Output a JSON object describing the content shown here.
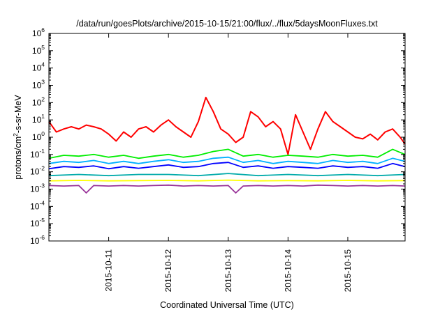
{
  "chart_data": {
    "type": "line",
    "title": "/data/run/goesPlots/archive/2015-10-15/21:00/flux/../flux/5daysMoonFluxes.txt",
    "xlabel": "Coordinated Universal Time (UTC)",
    "ylabel": "protons/cm²-s-sr-MeV",
    "ylabel_parts": {
      "pre": "protons/cm",
      "sup": "2",
      "post": "-s-sr-MeV"
    },
    "y_scale": "log",
    "ylim": [
      1e-06,
      1000000.0
    ],
    "y_ticks": [
      {
        "value": 1e-06,
        "base": "10",
        "exp": "-6"
      },
      {
        "value": 1e-05,
        "base": "10",
        "exp": "-5"
      },
      {
        "value": 0.0001,
        "base": "10",
        "exp": "-4"
      },
      {
        "value": 0.001,
        "base": "10",
        "exp": "-3"
      },
      {
        "value": 0.01,
        "base": "10",
        "exp": "-2"
      },
      {
        "value": 0.1,
        "base": "10",
        "exp": "-1"
      },
      {
        "value": 1,
        "base": "10",
        "exp": "0"
      },
      {
        "value": 10,
        "base": "10",
        "exp": "1"
      },
      {
        "value": 100,
        "base": "10",
        "exp": "2"
      },
      {
        "value": 1000,
        "base": "10",
        "exp": "3"
      },
      {
        "value": 10000,
        "base": "10",
        "exp": "4"
      },
      {
        "value": 100000,
        "base": "10",
        "exp": "5"
      },
      {
        "value": 1000000,
        "base": "10",
        "exp": "6"
      }
    ],
    "xlim": [
      "2015-10-10T00:00",
      "2015-10-15T23:00"
    ],
    "x_ticks": [
      "2015-10-11",
      "2015-10-12",
      "2015-10-13",
      "2015-10-14",
      "2015-10-15"
    ],
    "grid": false,
    "series": [
      {
        "color": "#ff0000",
        "x": [
          "2015-10-10T00:00",
          "2015-10-10T03:00",
          "2015-10-10T06:00",
          "2015-10-10T09:00",
          "2015-10-10T12:00",
          "2015-10-10T15:00",
          "2015-10-10T18:00",
          "2015-10-10T21:00",
          "2015-10-11T00:00",
          "2015-10-11T03:00",
          "2015-10-11T06:00",
          "2015-10-11T09:00",
          "2015-10-11T12:00",
          "2015-10-11T15:00",
          "2015-10-11T18:00",
          "2015-10-11T21:00",
          "2015-10-12T00:00",
          "2015-10-12T03:00",
          "2015-10-12T06:00",
          "2015-10-12T09:00",
          "2015-10-12T12:00",
          "2015-10-12T15:00",
          "2015-10-12T18:00",
          "2015-10-12T21:00",
          "2015-10-13T00:00",
          "2015-10-13T03:00",
          "2015-10-13T06:00",
          "2015-10-13T09:00",
          "2015-10-13T12:00",
          "2015-10-13T15:00",
          "2015-10-13T18:00",
          "2015-10-13T21:00",
          "2015-10-14T00:00",
          "2015-10-14T03:00",
          "2015-10-14T06:00",
          "2015-10-14T09:00",
          "2015-10-14T12:00",
          "2015-10-14T15:00",
          "2015-10-14T18:00",
          "2015-10-14T21:00",
          "2015-10-15T00:00",
          "2015-10-15T03:00",
          "2015-10-15T06:00",
          "2015-10-15T09:00",
          "2015-10-15T12:00",
          "2015-10-15T15:00",
          "2015-10-15T18:00",
          "2015-10-15T21:00",
          "2015-10-15T23:00"
        ],
        "values": [
          8,
          2,
          3,
          4,
          3,
          5,
          4,
          3,
          1.5,
          0.6,
          2,
          1,
          3,
          4,
          2,
          5,
          10,
          4,
          2,
          1,
          8,
          200,
          30,
          3,
          1.5,
          0.5,
          1,
          30,
          15,
          4,
          8,
          3,
          0.1,
          20,
          2,
          0.2,
          3,
          30,
          8,
          4,
          2,
          1,
          0.8,
          1.5,
          0.7,
          2,
          3,
          1,
          0.4
        ]
      },
      {
        "color": "#00ee00",
        "x": [
          "2015-10-10T00:00",
          "2015-10-10T06:00",
          "2015-10-10T12:00",
          "2015-10-10T18:00",
          "2015-10-11T00:00",
          "2015-10-11T06:00",
          "2015-10-11T12:00",
          "2015-10-11T18:00",
          "2015-10-12T00:00",
          "2015-10-12T06:00",
          "2015-10-12T12:00",
          "2015-10-12T18:00",
          "2015-10-13T00:00",
          "2015-10-13T06:00",
          "2015-10-13T12:00",
          "2015-10-13T18:00",
          "2015-10-14T00:00",
          "2015-10-14T06:00",
          "2015-10-14T12:00",
          "2015-10-14T18:00",
          "2015-10-15T00:00",
          "2015-10-15T06:00",
          "2015-10-15T12:00",
          "2015-10-15T18:00",
          "2015-10-15T23:00"
        ],
        "values": [
          0.06,
          0.09,
          0.08,
          0.1,
          0.07,
          0.09,
          0.06,
          0.08,
          0.1,
          0.07,
          0.09,
          0.15,
          0.2,
          0.08,
          0.1,
          0.07,
          0.09,
          0.08,
          0.07,
          0.1,
          0.08,
          0.09,
          0.07,
          0.2,
          0.1
        ]
      },
      {
        "color": "#00b0ff",
        "x": [
          "2015-10-10T00:00",
          "2015-10-10T06:00",
          "2015-10-10T12:00",
          "2015-10-10T18:00",
          "2015-10-11T00:00",
          "2015-10-11T06:00",
          "2015-10-11T12:00",
          "2015-10-11T18:00",
          "2015-10-12T00:00",
          "2015-10-12T06:00",
          "2015-10-12T12:00",
          "2015-10-12T18:00",
          "2015-10-13T00:00",
          "2015-10-13T06:00",
          "2015-10-13T12:00",
          "2015-10-13T18:00",
          "2015-10-14T00:00",
          "2015-10-14T06:00",
          "2015-10-14T12:00",
          "2015-10-14T18:00",
          "2015-10-15T00:00",
          "2015-10-15T06:00",
          "2015-10-15T12:00",
          "2015-10-15T18:00",
          "2015-10-15T23:00"
        ],
        "values": [
          0.03,
          0.04,
          0.035,
          0.045,
          0.03,
          0.04,
          0.03,
          0.04,
          0.05,
          0.035,
          0.04,
          0.06,
          0.07,
          0.035,
          0.045,
          0.03,
          0.04,
          0.035,
          0.03,
          0.045,
          0.035,
          0.04,
          0.03,
          0.06,
          0.04
        ]
      },
      {
        "color": "#0000ff",
        "x": [
          "2015-10-10T00:00",
          "2015-10-10T06:00",
          "2015-10-10T12:00",
          "2015-10-10T18:00",
          "2015-10-11T00:00",
          "2015-10-11T06:00",
          "2015-10-11T12:00",
          "2015-10-11T18:00",
          "2015-10-12T00:00",
          "2015-10-12T06:00",
          "2015-10-12T12:00",
          "2015-10-12T18:00",
          "2015-10-13T00:00",
          "2015-10-13T06:00",
          "2015-10-13T12:00",
          "2015-10-13T18:00",
          "2015-10-14T00:00",
          "2015-10-14T06:00",
          "2015-10-14T12:00",
          "2015-10-14T18:00",
          "2015-10-15T00:00",
          "2015-10-15T06:00",
          "2015-10-15T12:00",
          "2015-10-15T18:00",
          "2015-10-15T23:00"
        ],
        "values": [
          0.015,
          0.02,
          0.018,
          0.022,
          0.015,
          0.02,
          0.016,
          0.02,
          0.025,
          0.018,
          0.02,
          0.03,
          0.035,
          0.018,
          0.022,
          0.016,
          0.02,
          0.018,
          0.016,
          0.022,
          0.018,
          0.02,
          0.016,
          0.03,
          0.02
        ]
      },
      {
        "color": "#00aaaa",
        "x": [
          "2015-10-10T00:00",
          "2015-10-10T12:00",
          "2015-10-11T00:00",
          "2015-10-11T12:00",
          "2015-10-12T00:00",
          "2015-10-12T12:00",
          "2015-10-13T00:00",
          "2015-10-13T12:00",
          "2015-10-14T00:00",
          "2015-10-14T12:00",
          "2015-10-15T00:00",
          "2015-10-15T12:00",
          "2015-10-15T23:00"
        ],
        "values": [
          0.006,
          0.007,
          0.006,
          0.007,
          0.007,
          0.006,
          0.008,
          0.006,
          0.007,
          0.006,
          0.007,
          0.006,
          0.007
        ]
      },
      {
        "color": "#ffff00",
        "x": [
          "2015-10-10T00:00",
          "2015-10-10T12:00",
          "2015-10-11T00:00",
          "2015-10-11T12:00",
          "2015-10-12T00:00",
          "2015-10-12T12:00",
          "2015-10-13T00:00",
          "2015-10-13T12:00",
          "2015-10-14T00:00",
          "2015-10-14T12:00",
          "2015-10-15T00:00",
          "2015-10-15T12:00",
          "2015-10-15T23:00"
        ],
        "values": [
          0.003,
          0.0032,
          0.003,
          0.0031,
          0.0032,
          0.003,
          0.0033,
          0.003,
          0.0031,
          0.003,
          0.0032,
          0.003,
          0.0031
        ]
      },
      {
        "color": "#993399",
        "x": [
          "2015-10-10T00:00",
          "2015-10-10T06:00",
          "2015-10-10T12:00",
          "2015-10-10T15:00",
          "2015-10-10T18:00",
          "2015-10-11T00:00",
          "2015-10-11T06:00",
          "2015-10-11T12:00",
          "2015-10-11T18:00",
          "2015-10-12T00:00",
          "2015-10-12T06:00",
          "2015-10-12T12:00",
          "2015-10-12T18:00",
          "2015-10-13T00:00",
          "2015-10-13T03:00",
          "2015-10-13T06:00",
          "2015-10-13T12:00",
          "2015-10-13T18:00",
          "2015-10-14T00:00",
          "2015-10-14T06:00",
          "2015-10-14T12:00",
          "2015-10-14T18:00",
          "2015-10-15T00:00",
          "2015-10-15T06:00",
          "2015-10-15T12:00",
          "2015-10-15T18:00",
          "2015-10-15T23:00"
        ],
        "values": [
          0.0016,
          0.0015,
          0.0016,
          0.0006,
          0.0016,
          0.0015,
          0.0016,
          0.0015,
          0.0016,
          0.0017,
          0.0015,
          0.0016,
          0.0015,
          0.0016,
          0.0006,
          0.0015,
          0.0016,
          0.0015,
          0.0016,
          0.0015,
          0.0017,
          0.0016,
          0.0015,
          0.0016,
          0.0015,
          0.0016,
          0.0015
        ]
      }
    ]
  }
}
